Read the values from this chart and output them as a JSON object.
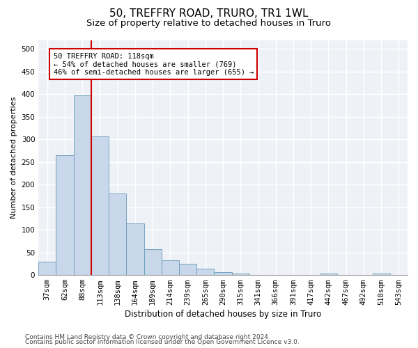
{
  "title1": "50, TREFFRY ROAD, TRURO, TR1 1WL",
  "title2": "Size of property relative to detached houses in Truro",
  "xlabel": "Distribution of detached houses by size in Truro",
  "ylabel": "Number of detached properties",
  "categories": [
    "37sqm",
    "62sqm",
    "88sqm",
    "113sqm",
    "138sqm",
    "164sqm",
    "189sqm",
    "214sqm",
    "239sqm",
    "265sqm",
    "290sqm",
    "315sqm",
    "341sqm",
    "366sqm",
    "391sqm",
    "417sqm",
    "442sqm",
    "467sqm",
    "492sqm",
    "518sqm",
    "543sqm"
  ],
  "values": [
    30,
    265,
    397,
    307,
    181,
    115,
    58,
    33,
    25,
    14,
    7,
    4,
    0,
    0,
    0,
    0,
    4,
    0,
    0,
    4,
    0
  ],
  "bar_color": "#c8d8ea",
  "bar_edge_color": "#6699bb",
  "vline_x": 2.5,
  "vline_color": "#cc0000",
  "annotation_line1": "50 TREFFRY ROAD: 118sqm",
  "annotation_line2": "← 54% of detached houses are smaller (769)",
  "annotation_line3": "46% of semi-detached houses are larger (655) →",
  "annotation_box_color": "white",
  "annotation_box_edge_color": "#cc0000",
  "ylim": [
    0,
    520
  ],
  "yticks": [
    0,
    50,
    100,
    150,
    200,
    250,
    300,
    350,
    400,
    450,
    500
  ],
  "footer1": "Contains HM Land Registry data © Crown copyright and database right 2024.",
  "footer2": "Contains public sector information licensed under the Open Government Licence v3.0.",
  "background_color": "#eef2f7",
  "grid_color": "#ffffff",
  "title1_fontsize": 11,
  "title2_fontsize": 9.5,
  "xlabel_fontsize": 8.5,
  "ylabel_fontsize": 8,
  "tick_fontsize": 7.5,
  "annotation_fontsize": 7.5,
  "footer_fontsize": 6.5
}
